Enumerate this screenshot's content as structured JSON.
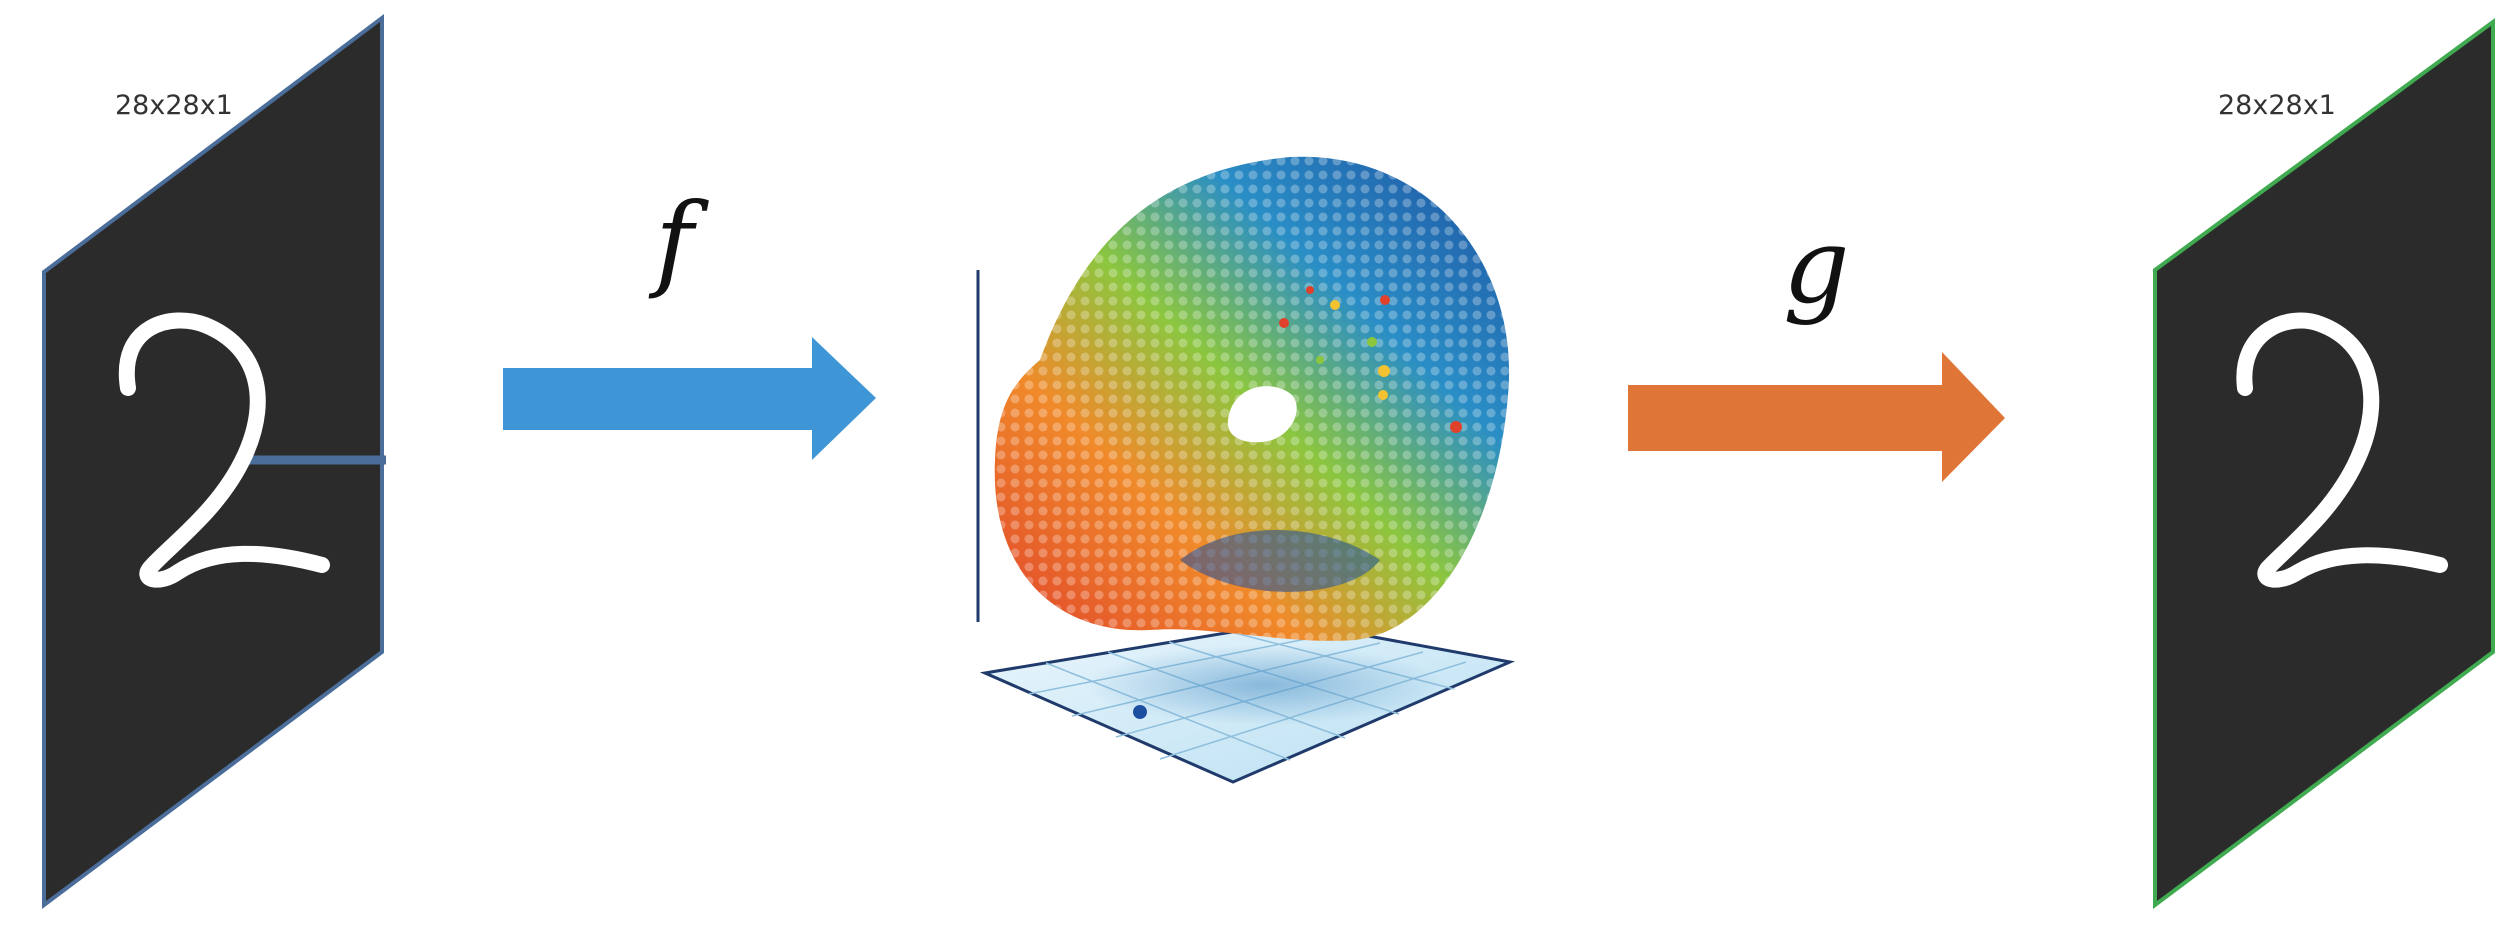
{
  "input_panel": {
    "shape_label": "28x28x1",
    "digit": "2",
    "border_color": "#4a6d9a"
  },
  "encoder": {
    "symbol": "f",
    "arrow_color": "#3e96d6"
  },
  "latent": {
    "colors": [
      "#1d4fa0",
      "#2a8ec6",
      "#3fb48a",
      "#8cc63f",
      "#f2c230",
      "#f08a2a",
      "#e0412b"
    ],
    "floor_color": "#cfe8f5"
  },
  "decoder": {
    "symbol": "g",
    "arrow_color": "#e07538"
  },
  "output_panel": {
    "shape_label": "28x28x1",
    "digit": "2",
    "border_color": "#3faa4f"
  },
  "panel_fill": "#2b2b2b"
}
